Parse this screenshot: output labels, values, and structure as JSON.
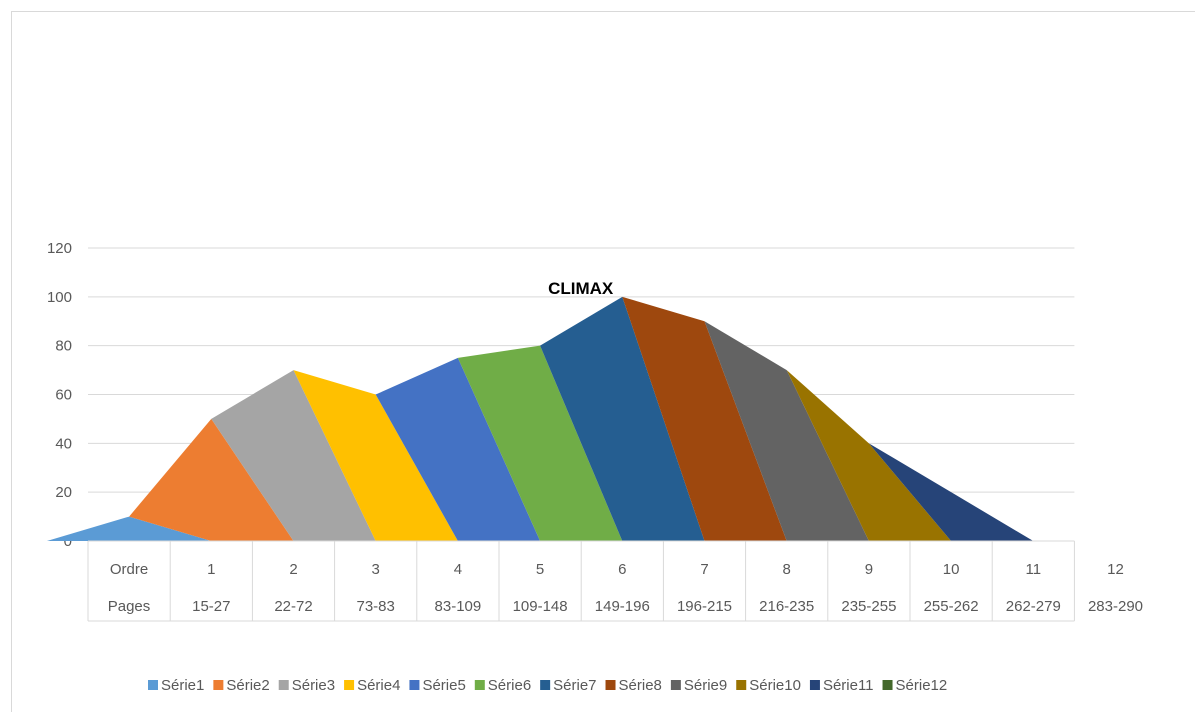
{
  "chart_data": {
    "type": "area",
    "categories": [
      "1",
      "2",
      "3",
      "4",
      "5",
      "6",
      "7",
      "8",
      "9",
      "10",
      "11",
      "12"
    ],
    "table_rows": [
      {
        "label": "Ordre",
        "values": [
          "1",
          "2",
          "3",
          "4",
          "5",
          "6",
          "7",
          "8",
          "9",
          "10",
          "11",
          "12"
        ]
      },
      {
        "label": "Pages",
        "values": [
          "15-27",
          "22-72",
          "73-83",
          "83-109",
          "109-148",
          "149-196",
          "196-215",
          "216-235",
          "235-255",
          "255-262",
          "262-279",
          "283-290"
        ]
      }
    ],
    "y_ticks": [
      "0",
      "20",
      "40",
      "60",
      "80",
      "100",
      "120"
    ],
    "ylim": [
      0,
      120
    ],
    "grid": true,
    "legend_position": "bottom",
    "annotation": {
      "text": "CLIMAX",
      "category": "7",
      "value": 100
    },
    "series": [
      {
        "name": "Série1",
        "color": "#5b9bd5",
        "x": [
          0,
          1
        ],
        "y": [
          0,
          10
        ]
      },
      {
        "name": "Série2",
        "color": "#ed7d31",
        "x": [
          1,
          2
        ],
        "y": [
          10,
          50
        ]
      },
      {
        "name": "Série3",
        "color": "#a5a5a5",
        "x": [
          2,
          3
        ],
        "y": [
          50,
          70
        ]
      },
      {
        "name": "Série4",
        "color": "#ffc000",
        "x": [
          3,
          4
        ],
        "y": [
          70,
          60
        ]
      },
      {
        "name": "Série5",
        "color": "#4472c4",
        "x": [
          4,
          5
        ],
        "y": [
          60,
          75
        ]
      },
      {
        "name": "Série6",
        "color": "#70ad47",
        "x": [
          5,
          6
        ],
        "y": [
          75,
          80
        ]
      },
      {
        "name": "Série7",
        "color": "#255e91",
        "x": [
          6,
          7
        ],
        "y": [
          80,
          100
        ]
      },
      {
        "name": "Série8",
        "color": "#9e480e",
        "x": [
          7,
          8
        ],
        "y": [
          100,
          90
        ]
      },
      {
        "name": "Série9",
        "color": "#636363",
        "x": [
          8,
          9
        ],
        "y": [
          90,
          70
        ]
      },
      {
        "name": "Série10",
        "color": "#997300",
        "x": [
          9,
          10
        ],
        "y": [
          70,
          40
        ]
      },
      {
        "name": "Série11",
        "color": "#264478",
        "x": [
          10,
          11
        ],
        "y": [
          40,
          20
        ]
      },
      {
        "name": "Série12",
        "color": "#43682b",
        "x": [
          11,
          12
        ],
        "y": [
          20,
          0
        ]
      }
    ]
  }
}
